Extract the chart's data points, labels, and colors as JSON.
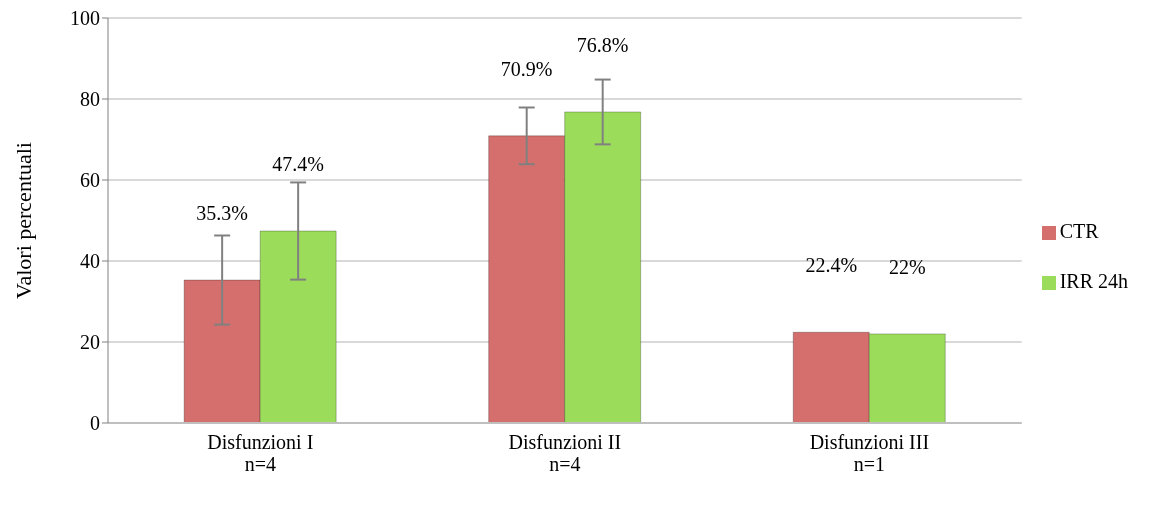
{
  "chart_data": {
    "type": "bar",
    "ylabel": "Valori percentuali",
    "categories": [
      "Disfunzioni I\nn=4",
      "Disfunzioni II\nn=4",
      "Disfunzioni III\nn=1"
    ],
    "series": [
      {
        "name": "CTR",
        "color": "#d46f6d",
        "values": [
          35.3,
          70.9,
          22.4
        ],
        "errors": [
          11,
          7,
          null
        ],
        "value_labels": [
          "35.3%",
          "70.9%",
          "22.4%"
        ]
      },
      {
        "name": "IRR 24h",
        "color": "#9bdc5a",
        "values": [
          47.4,
          76.8,
          22
        ],
        "errors": [
          12,
          8,
          null
        ],
        "value_labels": [
          "47.4%",
          "76.8%",
          "22%"
        ]
      }
    ],
    "ylim": [
      0,
      100
    ],
    "yticks": [
      0,
      20,
      40,
      60,
      80,
      100
    ],
    "grid": "y",
    "legend": "right"
  }
}
